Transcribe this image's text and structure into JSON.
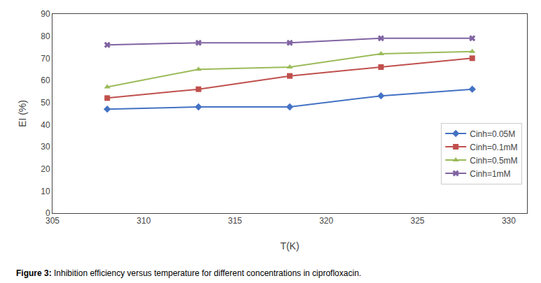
{
  "chart_data": {
    "type": "line",
    "xlabel": "T(K)",
    "ylabel": "EI (%)",
    "annotations": [
      "Figure 3: ",
      "Inhibition efficiency versus temperature for different concentrations in ciprofloxacin."
    ],
    "x": [
      308,
      313,
      318,
      323,
      328
    ],
    "series": [
      {
        "name": "Cinh=0.05M",
        "color": "#4472C4",
        "marker": "diamond",
        "values": [
          47,
          48,
          48,
          53,
          56
        ]
      },
      {
        "name": "Cinh=0.1mM",
        "color": "#C0504D",
        "marker": "square",
        "values": [
          52,
          56,
          62,
          66,
          70
        ]
      },
      {
        "name": "Cinh=0.5mM",
        "color": "#9BBB59",
        "marker": "triangle-up",
        "values": [
          57,
          65,
          66,
          72,
          73
        ]
      },
      {
        "name": "Cinh=1mM",
        "color": "#8064A2",
        "marker": "x",
        "values": [
          76,
          77,
          77,
          79,
          79
        ]
      }
    ],
    "xlim": [
      305,
      331
    ],
    "ylim": [
      0,
      90
    ],
    "xticks": [
      305,
      310,
      315,
      320,
      325,
      330
    ],
    "yticks": [
      0,
      10,
      20,
      30,
      40,
      50,
      60,
      70,
      80,
      90
    ],
    "grid": false,
    "legend": "center right"
  }
}
